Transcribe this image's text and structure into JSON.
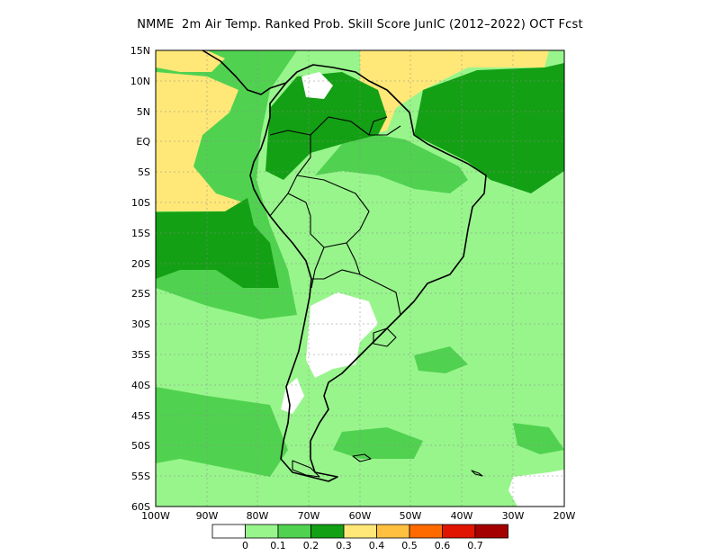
{
  "title": "NMME  2m Air Temp. Ranked Prob. Skill Score JunIC (2012–2022) OCT Fcst",
  "lat_labels": [
    "15N",
    "10N",
    "5N",
    "EQ",
    "5S",
    "10S",
    "15S",
    "20S",
    "25S",
    "30S",
    "35S",
    "40S",
    "45S",
    "50S",
    "55S",
    "60S"
  ],
  "lon_labels": [
    "100W",
    "90W",
    "80W",
    "70W",
    "60W",
    "50W",
    "40W",
    "30W",
    "20W"
  ],
  "legend": {
    "colors": [
      "#ffffff",
      "#98f58c",
      "#50d250",
      "#14a014",
      "#ffe878",
      "#ffc040",
      "#ff6a00",
      "#e01400",
      "#a50000"
    ],
    "labels": [
      "0",
      "0.1",
      "0.2",
      "0.3",
      "0.4",
      "0.5",
      "0.6",
      "0.7"
    ]
  },
  "palette": {
    "ocean_base": "#98f58c",
    "land": "#98f58c",
    "skill_02": "#50d250",
    "skill_03": "#14a014",
    "skill_04": "#ffe878",
    "no_skill": "#ffffff"
  }
}
